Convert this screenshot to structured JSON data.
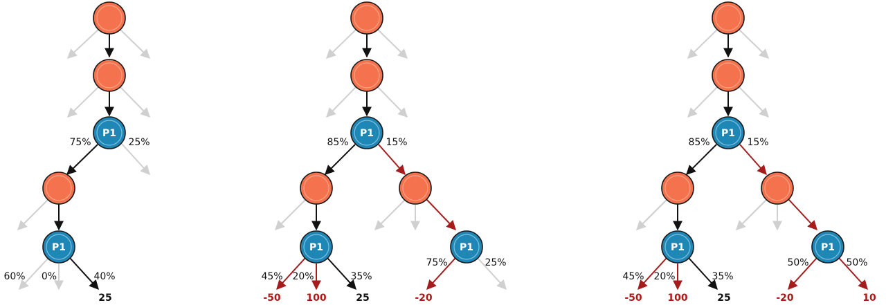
{
  "colors": {
    "chance_node": "#F4734E",
    "player_node": "#1F87B6",
    "active_edge": "#111111",
    "highlight_edge": "#A51C1C",
    "inactive_edge": "#D0D0D0",
    "red_value": "#B01818"
  },
  "trees": [
    {
      "nodes": [
        {
          "label": ""
        },
        {
          "label": ""
        },
        {
          "label": "P1"
        },
        {
          "label": ""
        },
        {
          "label": "P1"
        }
      ],
      "pcts": [
        "75%",
        "25%",
        "60%",
        "0%",
        "40%"
      ],
      "values": [
        "25"
      ]
    },
    {
      "nodes": [
        {
          "label": ""
        },
        {
          "label": ""
        },
        {
          "label": "P1"
        },
        {
          "label": ""
        },
        {
          "label": ""
        },
        {
          "label": "P1"
        },
        {
          "label": "P1"
        }
      ],
      "pcts": [
        "85%",
        "15%",
        "45%",
        "20%",
        "35%",
        "75%",
        "25%"
      ],
      "values": [
        "-50",
        "100",
        "25",
        "-20"
      ]
    },
    {
      "nodes": [
        {
          "label": ""
        },
        {
          "label": ""
        },
        {
          "label": "P1"
        },
        {
          "label": ""
        },
        {
          "label": ""
        },
        {
          "label": "P1"
        },
        {
          "label": "P1"
        }
      ],
      "pcts": [
        "85%",
        "15%",
        "45%",
        "20%",
        "35%",
        "50%",
        "50%"
      ],
      "values": [
        "-50",
        "100",
        "25",
        "-20",
        "10"
      ]
    }
  ]
}
